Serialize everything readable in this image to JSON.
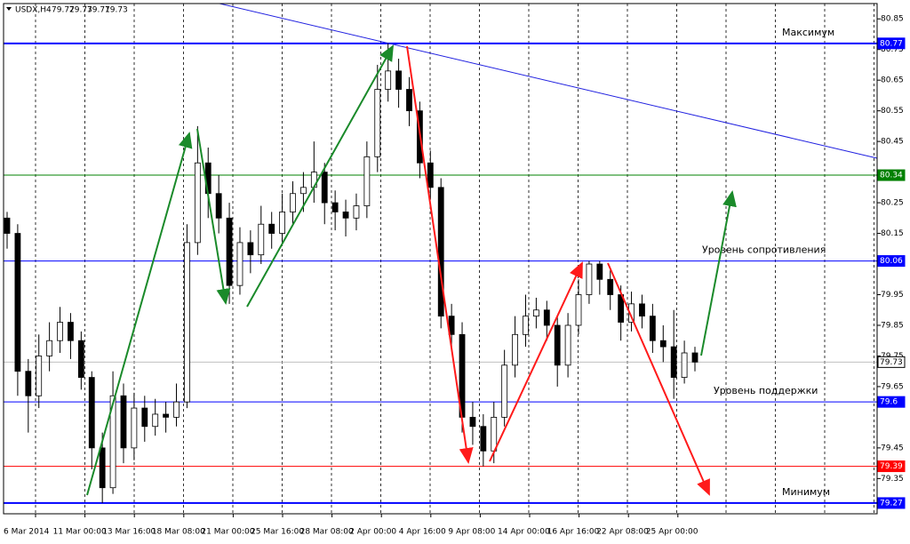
{
  "chart_data": {
    "type": "candlestick",
    "symbol": "USDX,H4",
    "header_values": [
      79.72,
      79.73,
      79.71,
      79.73
    ],
    "time_labels": [
      "6 Mar 2014",
      "11 Mar 00:00",
      "13 Mar 16:00",
      "18 Mar 08:00",
      "21 Mar 00:00",
      "25 Mar 16:00",
      "28 Mar 08:00",
      "2 Apr 00:00",
      "4 Apr 16:00",
      "9 Apr 08:00",
      "14 Apr 00:00",
      "16 Apr 16:00",
      "22 Apr 08:00",
      "25 Apr 00:00"
    ],
    "ylim": [
      79.235,
      80.9
    ],
    "yticks": [
      79.35,
      79.45,
      79.65,
      79.75,
      79.85,
      79.95,
      80.15,
      80.25,
      80.45,
      80.55,
      80.65,
      80.75,
      80.85
    ],
    "open": [
      80.2,
      80.15,
      79.7,
      79.62,
      79.75,
      79.8,
      79.86,
      79.8,
      79.68,
      79.45,
      79.32,
      79.62,
      79.45,
      79.58,
      79.52,
      79.56,
      79.55,
      79.6,
      80.12,
      80.38,
      80.28,
      80.2,
      79.98,
      80.12,
      80.08,
      80.18,
      80.15,
      80.22,
      80.28,
      80.3,
      80.35,
      80.25,
      80.22,
      80.2,
      80.24,
      80.4,
      80.62,
      80.68,
      80.62,
      80.55,
      80.38,
      80.3,
      79.88,
      79.82,
      79.55,
      79.52,
      79.44,
      79.55,
      79.72,
      79.82,
      79.88,
      79.9,
      79.85,
      79.72,
      79.85,
      79.95,
      80.05,
      80.0,
      79.95,
      79.86,
      79.92,
      79.88,
      79.8,
      79.78,
      79.68,
      79.76
    ],
    "high": [
      80.22,
      80.18,
      79.74,
      79.82,
      79.86,
      79.91,
      79.89,
      79.83,
      79.7,
      79.5,
      79.7,
      79.66,
      79.63,
      79.62,
      79.61,
      79.6,
      79.66,
      80.18,
      80.5,
      80.43,
      80.34,
      80.25,
      80.17,
      80.16,
      80.24,
      80.22,
      80.28,
      80.32,
      80.35,
      80.45,
      80.38,
      80.29,
      80.26,
      80.28,
      80.45,
      80.7,
      80.77,
      80.72,
      80.66,
      80.58,
      80.42,
      80.33,
      79.92,
      79.86,
      79.6,
      79.56,
      79.6,
      79.77,
      79.88,
      79.95,
      79.94,
      79.93,
      79.88,
      79.89,
      80.0,
      80.06,
      80.06,
      80.03,
      79.98,
      79.96,
      79.95,
      79.92,
      79.85,
      79.9,
      79.8,
      79.78
    ],
    "low": [
      80.1,
      79.62,
      79.5,
      79.58,
      79.7,
      79.76,
      79.74,
      79.64,
      79.38,
      79.27,
      79.3,
      79.4,
      79.41,
      79.47,
      79.49,
      79.5,
      79.52,
      79.58,
      80.08,
      80.2,
      80.15,
      79.92,
      79.95,
      80.02,
      80.05,
      80.1,
      80.12,
      80.18,
      80.22,
      80.25,
      80.18,
      80.16,
      80.14,
      80.16,
      80.2,
      80.35,
      80.58,
      80.56,
      80.5,
      80.33,
      80.26,
      79.84,
      79.78,
      79.5,
      79.46,
      79.39,
      79.4,
      79.52,
      79.68,
      79.78,
      79.84,
      79.8,
      79.65,
      79.68,
      79.82,
      79.92,
      79.95,
      79.9,
      79.8,
      79.83,
      79.84,
      79.76,
      79.73,
      79.61,
      79.66,
      79.7
    ],
    "close": [
      80.15,
      79.7,
      79.62,
      79.75,
      79.8,
      79.86,
      79.8,
      79.68,
      79.45,
      79.32,
      79.62,
      79.45,
      79.58,
      79.52,
      79.56,
      79.55,
      79.6,
      80.12,
      80.38,
      80.28,
      80.2,
      79.98,
      80.12,
      80.08,
      80.18,
      80.15,
      80.22,
      80.28,
      80.3,
      80.35,
      80.25,
      80.22,
      80.2,
      80.24,
      80.4,
      80.62,
      80.68,
      80.62,
      80.55,
      80.38,
      80.3,
      79.88,
      79.82,
      79.55,
      79.52,
      79.44,
      79.55,
      79.72,
      79.82,
      79.88,
      79.9,
      79.85,
      79.72,
      79.85,
      79.95,
      80.05,
      80.0,
      79.95,
      79.86,
      79.92,
      79.88,
      79.8,
      79.78,
      79.68,
      79.76,
      79.73
    ],
    "levels": [
      {
        "value": 80.77,
        "color": "#0000ff",
        "label": "Максимум"
      },
      {
        "value": 80.34,
        "color": "#008000"
      },
      {
        "value": 80.06,
        "color": "#0000ff",
        "label": "Уровень сопротивления"
      },
      {
        "value": 79.73,
        "color": "#c0c0c0"
      },
      {
        "value": 79.6,
        "color": "#0000ff",
        "label": "Уровень поддержки"
      },
      {
        "value": 79.39,
        "color": "#ff0000"
      },
      {
        "value": 79.27,
        "color": "#0000ff",
        "label": "Минимум"
      }
    ]
  }
}
